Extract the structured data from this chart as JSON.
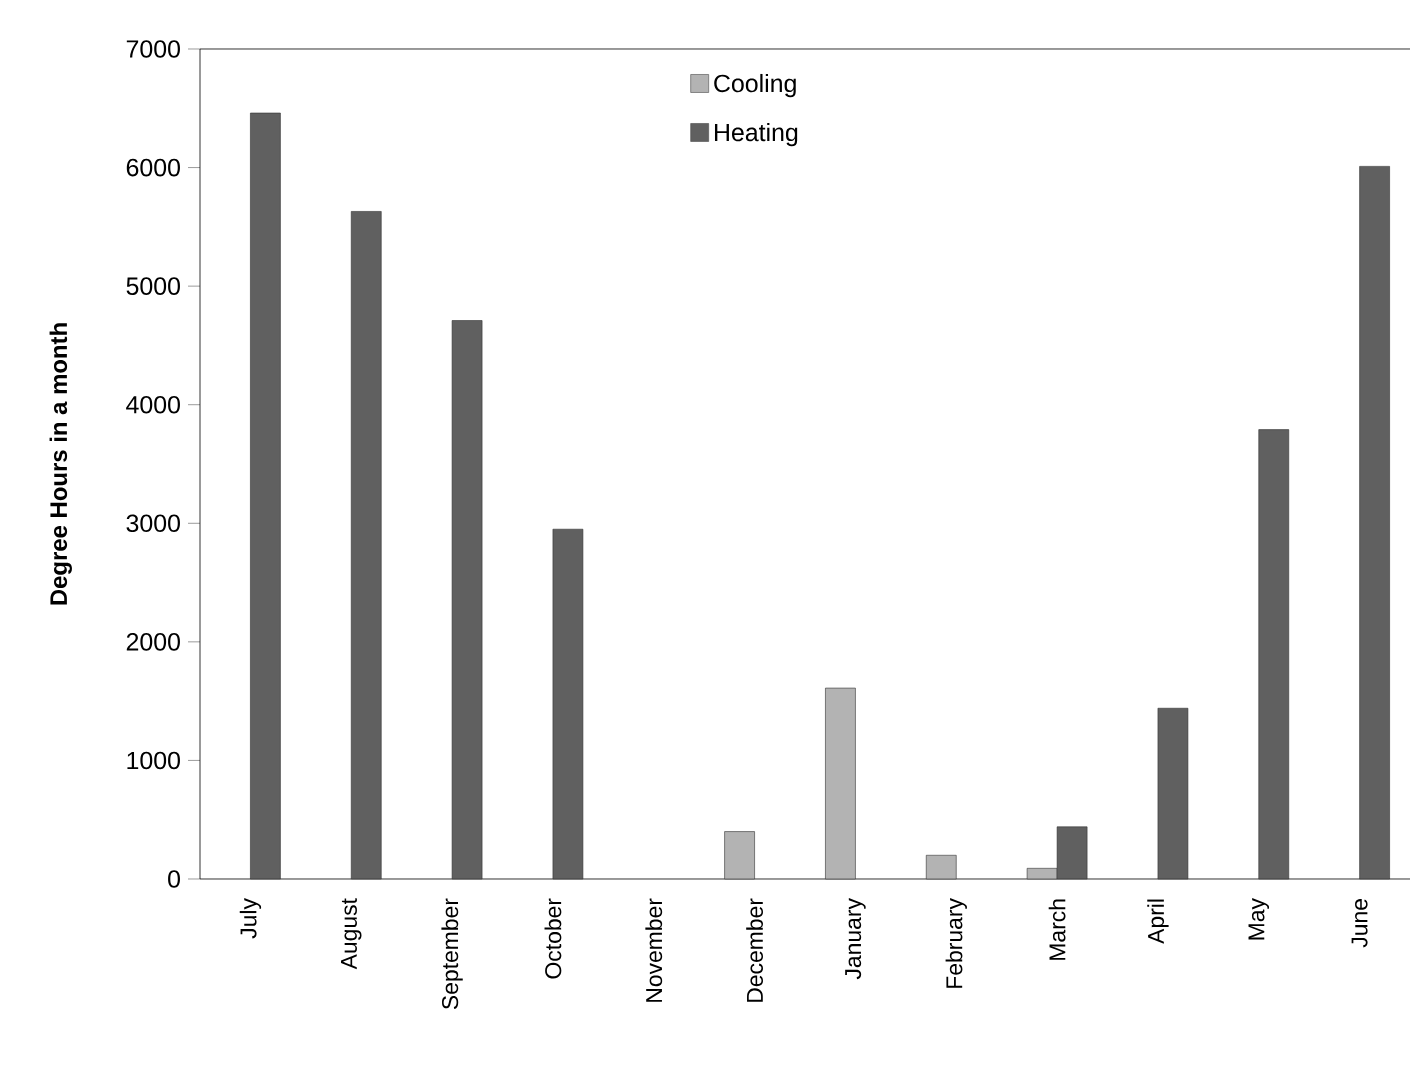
{
  "chart_data": {
    "type": "bar",
    "ylabel": "**Degree Hours in a month**",
    "categories": [
      "July",
      "August",
      "September",
      "October",
      "November",
      "December",
      "January",
      "February",
      "March",
      "April",
      "May",
      "June"
    ],
    "series": [
      {
        "name": "Cooling",
        "color": "#b3b3b3",
        "values": [
          null,
          null,
          null,
          null,
          null,
          400,
          1610,
          200,
          90,
          null,
          null,
          null
        ]
      },
      {
        "name": "Heating",
        "color": "#606060",
        "values": [
          6460,
          5630,
          4710,
          2950,
          null,
          null,
          null,
          null,
          440,
          1440,
          3790,
          6010
        ]
      }
    ],
    "ylim": [
      0,
      7000
    ],
    "yticks": [
      0,
      1000,
      2000,
      3000,
      4000,
      5000,
      6000,
      7000
    ],
    "grid": false,
    "legend": "top"
  }
}
